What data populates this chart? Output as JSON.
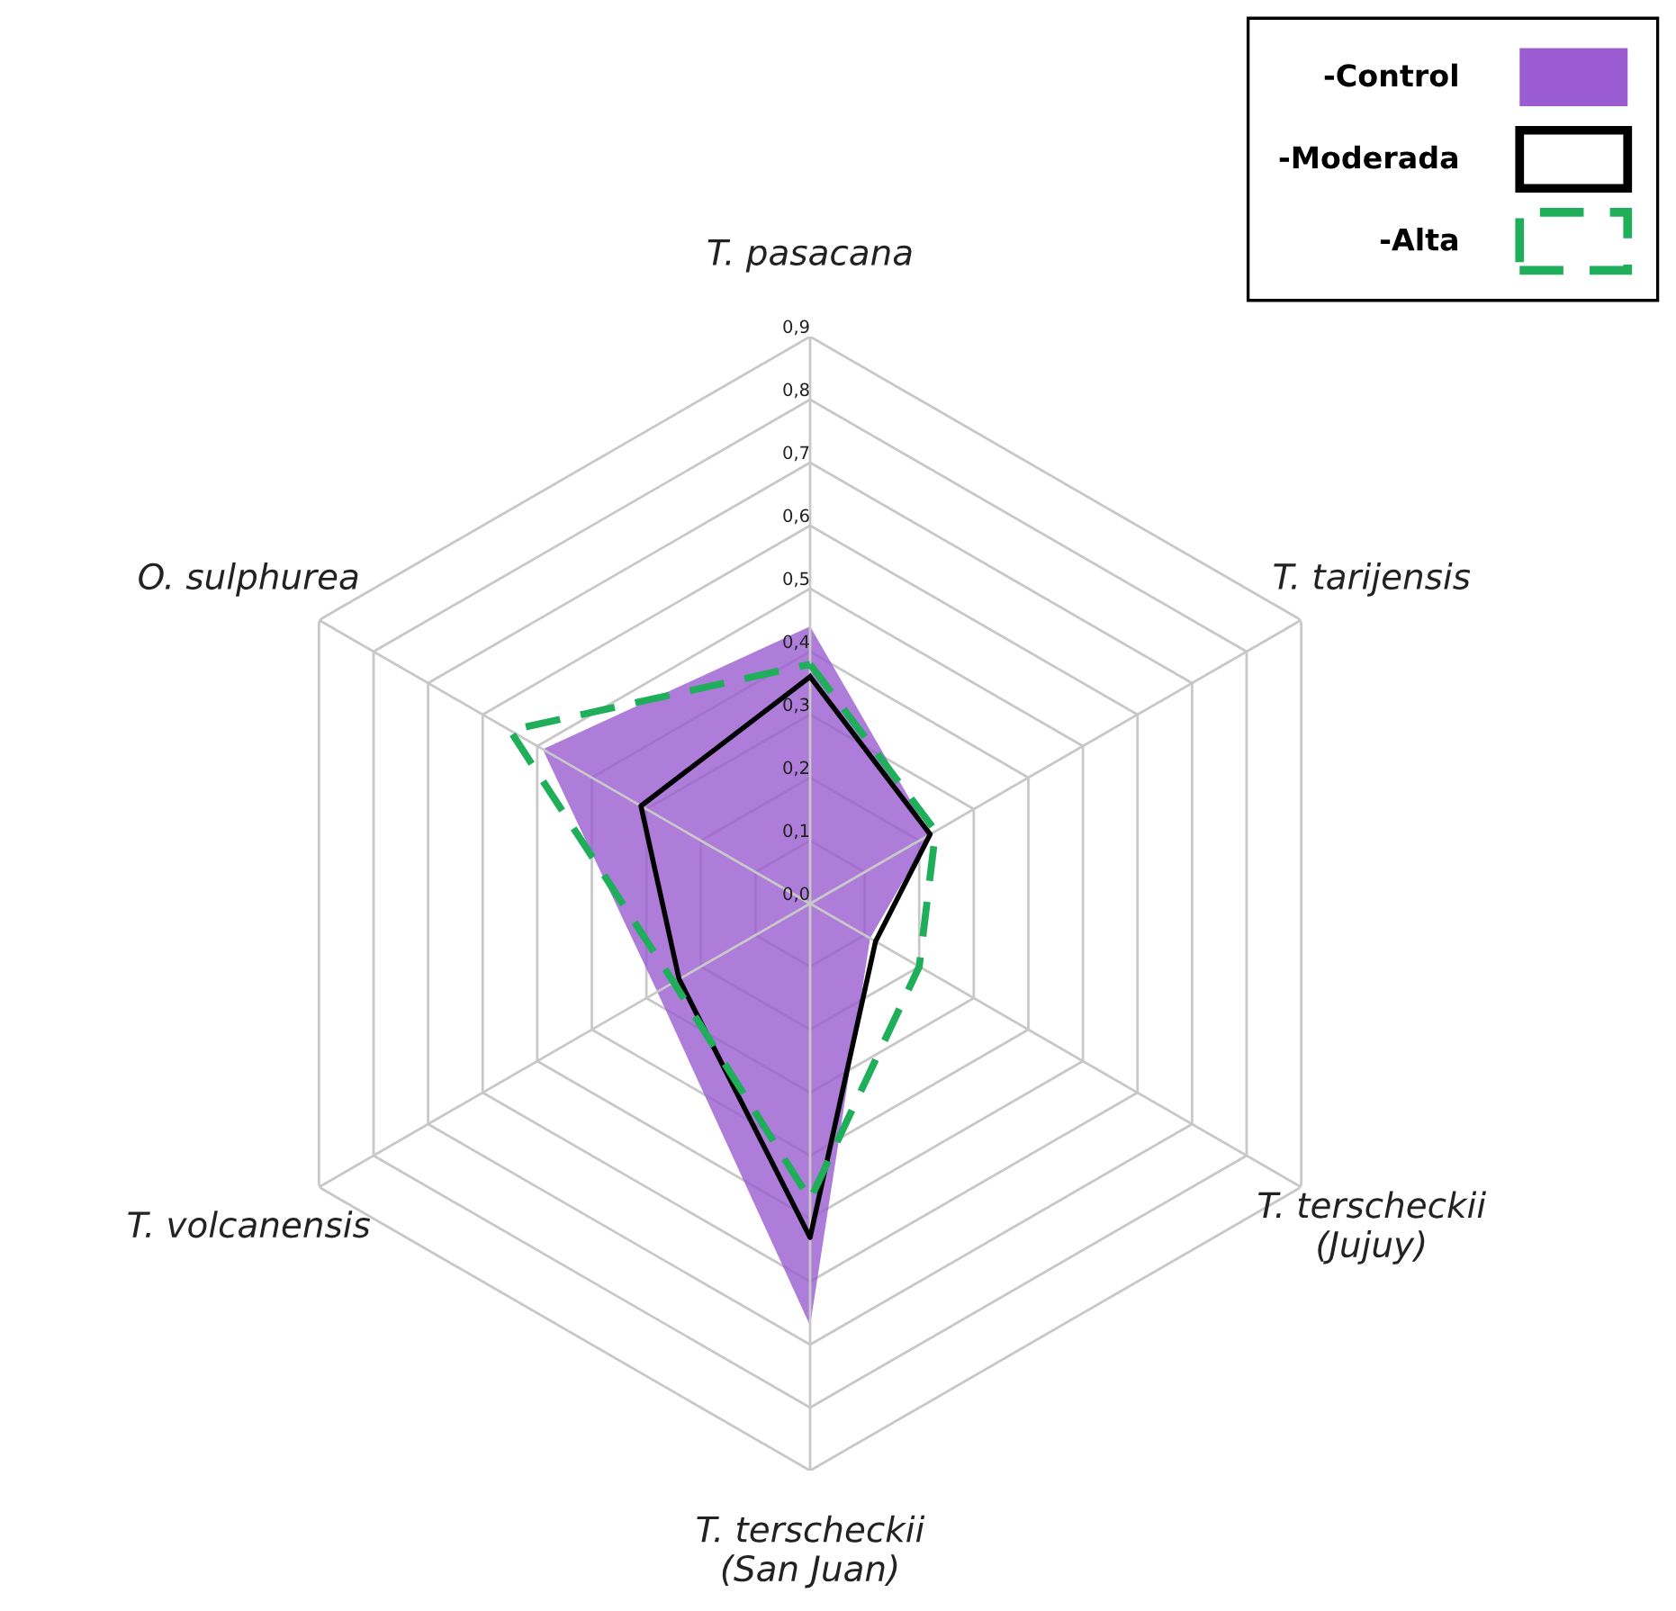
{
  "chart_data": {
    "type": "radar",
    "categories": [
      "T. pasacana",
      "T. tarijensis",
      "T. terscheckii\n(Jujuy)",
      "T. terscheckii\n(San Juan)",
      "T. volcanensis",
      "O. sulphurea"
    ],
    "series": [
      {
        "name": "-Control",
        "type": "area",
        "color": "#9a5cd0",
        "values": [
          0.44,
          0.22,
          0.11,
          0.67,
          0.28,
          0.49
        ]
      },
      {
        "name": "-Moderada",
        "color": "#000000",
        "line_style": "solid",
        "values": [
          0.36,
          0.22,
          0.12,
          0.53,
          0.24,
          0.31
        ]
      },
      {
        "name": "-Alta",
        "color": "#1fae5a",
        "line_style": "dashed",
        "values": [
          0.38,
          0.23,
          0.2,
          0.47,
          0.25,
          0.55
        ]
      }
    ],
    "ylim": [
      0,
      0.9
    ],
    "yticks": [
      {
        "value": 0,
        "label": "0,0"
      },
      {
        "value": 0.1,
        "label": "0,1"
      },
      {
        "value": 0.2,
        "label": "0,2"
      },
      {
        "value": 0.3,
        "label": "0,3"
      },
      {
        "value": 0.4,
        "label": "0,4"
      },
      {
        "value": 0.5,
        "label": "0,5"
      },
      {
        "value": 0.6,
        "label": "0,6"
      },
      {
        "value": 0.7,
        "label": "0,7"
      },
      {
        "value": 0.8,
        "label": "0,8"
      },
      {
        "value": 0.9,
        "label": "0,9"
      }
    ],
    "grid": true,
    "legend": "top right"
  }
}
